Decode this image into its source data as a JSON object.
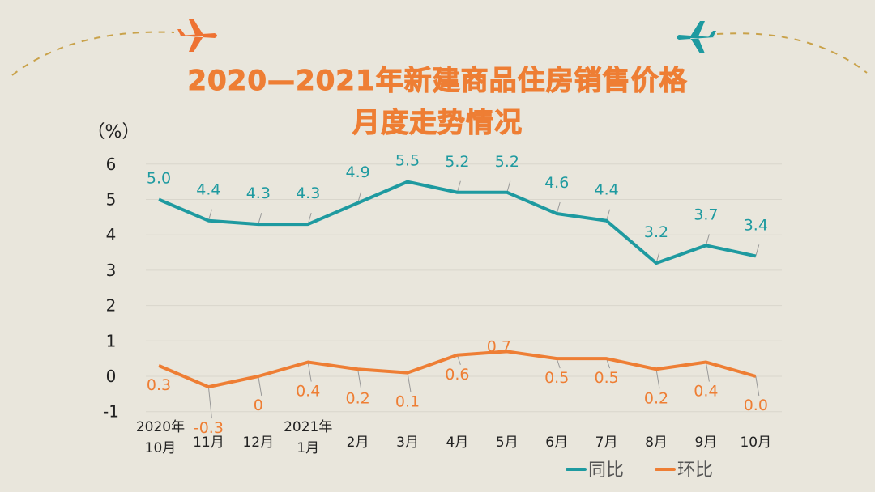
{
  "title_line1": "2020—2021年新建商品住房销售价格",
  "title_line2": "月度走势情况",
  "chart_data": {
    "type": "line",
    "title": "2020—2021年新建商品住房销售价格月度走势情况",
    "ylabel": "（%）",
    "ylim": [
      -1,
      6
    ],
    "yticks": [
      "6",
      "5",
      "4",
      "3",
      "2",
      "1",
      "0",
      "-1"
    ],
    "yticks_values": [
      6,
      5,
      4,
      3,
      2,
      1,
      0,
      -1
    ],
    "grid": true,
    "legend_placement": "bottom-right",
    "categories": [
      [
        "2020年",
        "10月"
      ],
      [
        "11月"
      ],
      [
        "12月"
      ],
      [
        "2021年",
        "1月"
      ],
      [
        "2月"
      ],
      [
        "3月"
      ],
      [
        "4月"
      ],
      [
        "5月"
      ],
      [
        "6月"
      ],
      [
        "7月"
      ],
      [
        "8月"
      ],
      [
        "9月"
      ],
      [
        "10月"
      ]
    ],
    "series": [
      {
        "name": "同比",
        "color": "#1e9aa0",
        "values": [
          5.0,
          4.4,
          4.3,
          4.3,
          4.9,
          5.5,
          5.2,
          5.2,
          4.6,
          4.4,
          3.2,
          3.7,
          3.4
        ],
        "labels": [
          "5.0",
          "4.4",
          "4.3",
          "4.3",
          "4.9",
          "5.5",
          "5.2",
          "5.2",
          "4.6",
          "4.4",
          "3.2",
          "3.7",
          "3.4"
        ]
      },
      {
        "name": "环比",
        "color": "#ee7e34",
        "values": [
          0.3,
          -0.3,
          0,
          0.4,
          0.2,
          0.1,
          0.6,
          0.7,
          0.5,
          0.5,
          0.2,
          0.4,
          0.0
        ],
        "labels": [
          "0.3",
          "-0.3",
          "0",
          "0.4",
          "0.2",
          "0.1",
          "0.6",
          "0.7",
          "0.5",
          "0.5",
          "0.2",
          "0.4",
          "0.0"
        ]
      }
    ]
  }
}
